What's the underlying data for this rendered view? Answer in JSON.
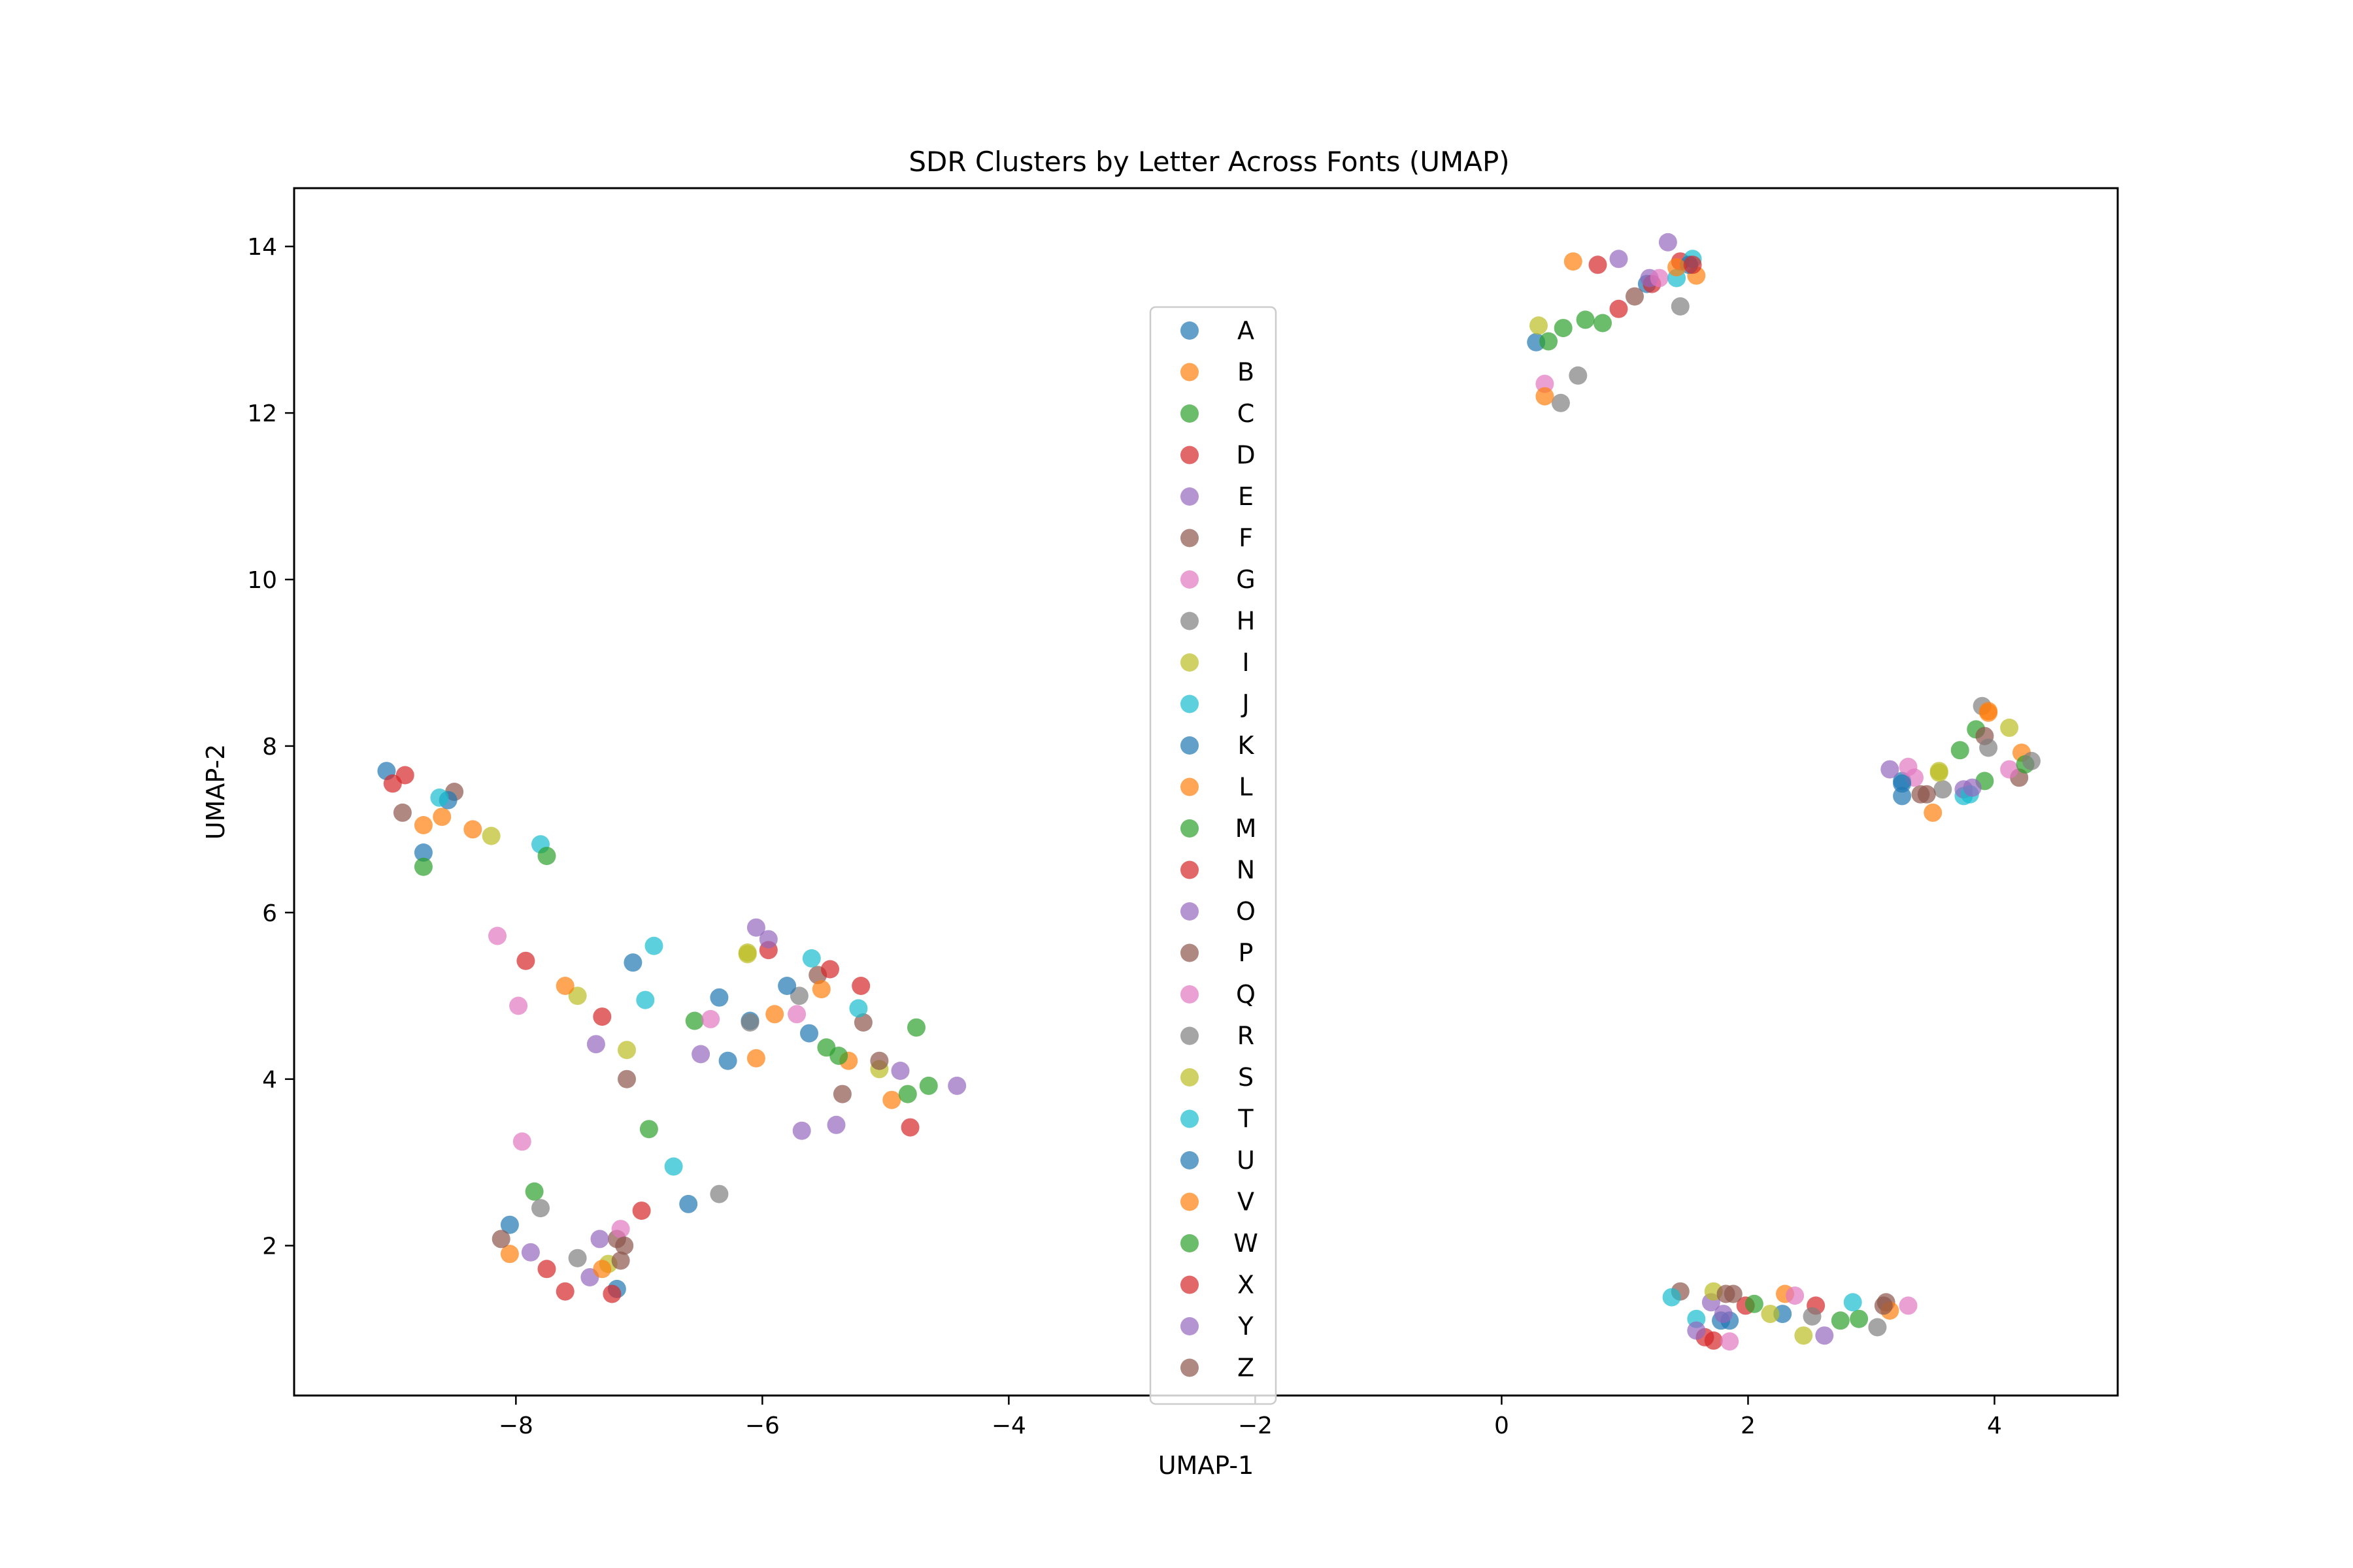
{
  "chart_data": {
    "type": "scatter",
    "title": "SDR Clusters by Letter Across Fonts (UMAP)",
    "xlabel": "UMAP-1",
    "ylabel": "UMAP-2",
    "xlim": [
      -9.8,
      5.0
    ],
    "ylim": [
      0.2,
      14.7
    ],
    "xticks": [
      -8,
      -6,
      -4,
      -2,
      0,
      2,
      4
    ],
    "yticks": [
      2,
      4,
      6,
      8,
      10,
      12,
      14
    ],
    "xtick_labels": [
      "−8",
      "−6",
      "−4",
      "−2",
      "0",
      "2",
      "4"
    ],
    "ytick_labels": [
      "2",
      "4",
      "6",
      "8",
      "10",
      "12",
      "14"
    ],
    "grid": false,
    "legend_position": "center",
    "series": [
      {
        "name": "A",
        "color": "#1f77b4",
        "points": [
          [
            -9.05,
            7.7
          ],
          [
            -8.75,
            6.72
          ],
          [
            -6.35,
            4.98
          ],
          [
            -6.1,
            4.7
          ],
          [
            0.28,
            12.85
          ],
          [
            3.25,
            7.58
          ],
          [
            1.85,
            1.1
          ]
        ]
      },
      {
        "name": "B",
        "color": "#ff7f0e",
        "points": [
          [
            -8.6,
            7.15
          ],
          [
            -8.35,
            7.0
          ],
          [
            -6.05,
            4.25
          ],
          [
            0.58,
            13.82
          ],
          [
            1.58,
            13.65
          ],
          [
            4.22,
            7.92
          ],
          [
            2.3,
            1.42
          ]
        ]
      },
      {
        "name": "C",
        "color": "#2ca02c",
        "points": [
          [
            -8.75,
            6.55
          ],
          [
            -7.85,
            2.65
          ],
          [
            -6.55,
            4.7
          ],
          [
            0.38,
            12.86
          ],
          [
            0.5,
            13.02
          ],
          [
            3.85,
            8.2
          ],
          [
            2.9,
            1.12
          ]
        ]
      },
      {
        "name": "D",
        "color": "#d62728",
        "points": [
          [
            -8.9,
            7.65
          ],
          [
            -7.75,
            1.72
          ],
          [
            -5.2,
            5.12
          ],
          [
            0.78,
            13.78
          ],
          [
            1.45,
            13.82
          ],
          [
            1.72,
            0.86
          ],
          [
            2.55,
            1.28
          ]
        ]
      },
      {
        "name": "E",
        "color": "#9467bd",
        "points": [
          [
            -7.35,
            4.42
          ],
          [
            -6.5,
            4.3
          ],
          [
            -6.05,
            5.82
          ],
          [
            0.95,
            13.85
          ],
          [
            1.35,
            14.05
          ],
          [
            3.15,
            7.72
          ],
          [
            1.7,
            1.32
          ]
        ]
      },
      {
        "name": "F",
        "color": "#8c564b",
        "points": [
          [
            -8.5,
            7.45
          ],
          [
            -7.1,
            4.0
          ],
          [
            -5.55,
            5.25
          ],
          [
            1.45,
            1.45
          ],
          [
            3.4,
            7.42
          ],
          [
            4.2,
            7.62
          ],
          [
            3.12,
            1.32
          ]
        ]
      },
      {
        "name": "G",
        "color": "#e377c2",
        "points": [
          [
            -8.15,
            5.72
          ],
          [
            -7.95,
            3.25
          ],
          [
            -6.42,
            4.72
          ],
          [
            0.35,
            12.35
          ],
          [
            3.3,
            7.75
          ],
          [
            4.12,
            7.72
          ],
          [
            1.85,
            0.85
          ]
        ]
      },
      {
        "name": "H",
        "color": "#7f7f7f",
        "points": [
          [
            -6.35,
            2.62
          ],
          [
            -5.7,
            5.0
          ],
          [
            0.48,
            12.12
          ],
          [
            1.45,
            13.28
          ],
          [
            3.58,
            7.48
          ],
          [
            3.9,
            8.48
          ],
          [
            3.05,
            1.02
          ]
        ]
      },
      {
        "name": "I",
        "color": "#bcbd22",
        "points": [
          [
            -8.2,
            6.92
          ],
          [
            -7.5,
            5.0
          ],
          [
            -6.12,
            5.52
          ],
          [
            0.3,
            13.05
          ],
          [
            3.55,
            7.7
          ],
          [
            4.12,
            8.22
          ],
          [
            2.45,
            0.92
          ]
        ]
      },
      {
        "name": "J",
        "color": "#17becf",
        "points": [
          [
            -7.8,
            6.82
          ],
          [
            -6.88,
            5.6
          ],
          [
            -5.6,
            5.45
          ],
          [
            1.55,
            13.85
          ],
          [
            3.75,
            7.4
          ],
          [
            1.38,
            1.38
          ],
          [
            2.85,
            1.32
          ]
        ]
      },
      {
        "name": "K",
        "color": "#1f77b4",
        "points": [
          [
            -8.55,
            7.35
          ],
          [
            -7.05,
            5.4
          ],
          [
            -6.28,
            4.22
          ],
          [
            1.18,
            13.55
          ],
          [
            3.25,
            7.4
          ],
          [
            1.78,
            1.1
          ],
          [
            2.28,
            1.18
          ]
        ]
      },
      {
        "name": "L",
        "color": "#ff7f0e",
        "points": [
          [
            -8.75,
            7.05
          ],
          [
            -7.6,
            5.12
          ],
          [
            -5.3,
            4.22
          ],
          [
            0.35,
            12.2
          ],
          [
            3.5,
            7.2
          ],
          [
            3.95,
            8.4
          ],
          [
            3.15,
            1.22
          ]
        ]
      },
      {
        "name": "M",
        "color": "#2ca02c",
        "points": [
          [
            -7.75,
            6.68
          ],
          [
            -6.92,
            3.4
          ],
          [
            -4.75,
            4.62
          ],
          [
            0.68,
            13.12
          ],
          [
            3.72,
            7.95
          ],
          [
            4.25,
            7.78
          ],
          [
            2.75,
            1.1
          ]
        ]
      },
      {
        "name": "N",
        "color": "#d62728",
        "points": [
          [
            -9.0,
            7.55
          ],
          [
            -7.3,
            4.75
          ],
          [
            -5.45,
            5.32
          ],
          [
            0.95,
            13.25
          ],
          [
            1.22,
            13.55
          ],
          [
            1.65,
            0.9
          ],
          [
            1.98,
            1.28
          ]
        ]
      },
      {
        "name": "O",
        "color": "#9467bd",
        "points": [
          [
            -7.88,
            1.92
          ],
          [
            -7.4,
            1.62
          ],
          [
            -5.68,
            3.38
          ],
          [
            1.2,
            13.62
          ],
          [
            3.75,
            7.48
          ],
          [
            1.8,
            1.18
          ],
          [
            2.62,
            0.92
          ]
        ]
      },
      {
        "name": "P",
        "color": "#8c564b",
        "points": [
          [
            -7.18,
            2.08
          ],
          [
            -5.35,
            3.82
          ],
          [
            -5.18,
            4.68
          ],
          [
            1.08,
            13.4
          ],
          [
            3.92,
            8.12
          ],
          [
            3.45,
            7.42
          ],
          [
            1.88,
            1.42
          ]
        ]
      },
      {
        "name": "Q",
        "color": "#e377c2",
        "points": [
          [
            -7.98,
            4.88
          ],
          [
            -7.15,
            2.2
          ],
          [
            -5.72,
            4.78
          ],
          [
            1.28,
            13.62
          ],
          [
            3.35,
            7.62
          ],
          [
            2.38,
            1.4
          ],
          [
            3.3,
            1.28
          ]
        ]
      },
      {
        "name": "R",
        "color": "#7f7f7f",
        "points": [
          [
            -7.8,
            2.45
          ],
          [
            -7.5,
            1.85
          ],
          [
            -6.1,
            4.68
          ],
          [
            0.62,
            12.45
          ],
          [
            3.95,
            7.98
          ],
          [
            4.3,
            7.82
          ],
          [
            2.52,
            1.15
          ]
        ]
      },
      {
        "name": "S",
        "color": "#bcbd22",
        "points": [
          [
            -7.1,
            4.35
          ],
          [
            -7.25,
            1.78
          ],
          [
            -6.12,
            5.5
          ],
          [
            -5.05,
            4.12
          ],
          [
            1.72,
            1.45
          ],
          [
            2.18,
            1.18
          ],
          [
            3.55,
            7.68
          ]
        ]
      },
      {
        "name": "T",
        "color": "#17becf",
        "points": [
          [
            -8.62,
            7.38
          ],
          [
            -6.95,
            4.95
          ],
          [
            -6.72,
            2.95
          ],
          [
            -5.22,
            4.85
          ],
          [
            1.42,
            13.62
          ],
          [
            3.8,
            7.42
          ],
          [
            1.58,
            1.12
          ]
        ]
      },
      {
        "name": "U",
        "color": "#1f77b4",
        "points": [
          [
            -8.05,
            2.25
          ],
          [
            -7.18,
            1.48
          ],
          [
            -6.6,
            2.5
          ],
          [
            -5.62,
            4.55
          ],
          [
            -5.8,
            5.12
          ],
          [
            1.52,
            13.78
          ],
          [
            3.25,
            7.55
          ]
        ]
      },
      {
        "name": "V",
        "color": "#ff7f0e",
        "points": [
          [
            -8.05,
            1.9
          ],
          [
            -7.3,
            1.72
          ],
          [
            -5.9,
            4.78
          ],
          [
            -5.52,
            5.08
          ],
          [
            -4.95,
            3.75
          ],
          [
            1.42,
            13.75
          ],
          [
            3.95,
            8.42
          ]
        ]
      },
      {
        "name": "W",
        "color": "#2ca02c",
        "points": [
          [
            -5.48,
            4.38
          ],
          [
            -5.38,
            4.28
          ],
          [
            -4.82,
            3.82
          ],
          [
            -4.65,
            3.92
          ],
          [
            0.82,
            13.08
          ],
          [
            3.92,
            7.58
          ],
          [
            2.05,
            1.3
          ]
        ]
      },
      {
        "name": "X",
        "color": "#d62728",
        "points": [
          [
            -7.92,
            5.42
          ],
          [
            -7.6,
            1.45
          ],
          [
            -7.22,
            1.42
          ],
          [
            -6.98,
            2.42
          ],
          [
            -4.8,
            3.42
          ],
          [
            -5.95,
            5.55
          ],
          [
            1.55,
            13.78
          ]
        ]
      },
      {
        "name": "Y",
        "color": "#9467bd",
        "points": [
          [
            -7.32,
            2.08
          ],
          [
            -5.95,
            5.68
          ],
          [
            -4.88,
            4.1
          ],
          [
            -4.42,
            3.92
          ],
          [
            -5.4,
            3.45
          ],
          [
            3.82,
            7.5
          ],
          [
            1.58,
            0.98
          ]
        ]
      },
      {
        "name": "Z",
        "color": "#8c564b",
        "points": [
          [
            -8.92,
            7.2
          ],
          [
            -8.12,
            2.08
          ],
          [
            -7.15,
            1.82
          ],
          [
            -7.12,
            2.0
          ],
          [
            -5.05,
            4.22
          ],
          [
            1.82,
            1.42
          ],
          [
            3.1,
            1.28
          ]
        ]
      }
    ]
  }
}
